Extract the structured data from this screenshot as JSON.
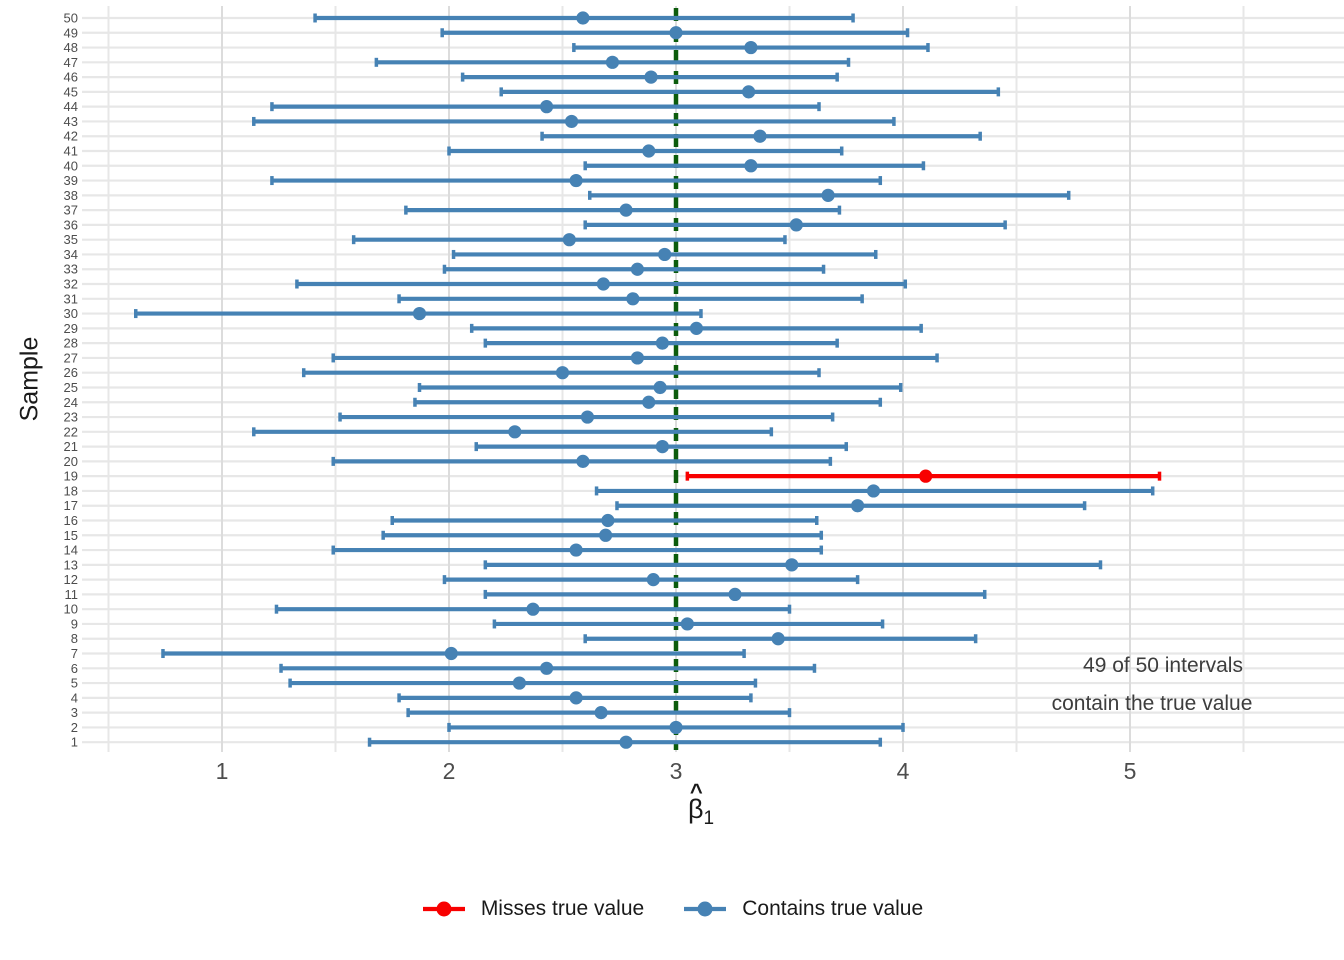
{
  "chart_data": {
    "type": "errorbar",
    "orientation": "horizontal",
    "title": "",
    "y_axis": {
      "title": "Sample",
      "tick_min": 1,
      "tick_max": 50
    },
    "x_axis": {
      "title_symbol": "β",
      "title_hat": "^",
      "title_subscript": "1",
      "ticks": [
        "1",
        "2",
        "3",
        "4",
        "5"
      ],
      "range": [
        0.38,
        5.93
      ]
    },
    "true_value": 3,
    "annotation": {
      "line1": "49 of 50 intervals",
      "line2": "contain the true value"
    },
    "legend": [
      {
        "label": "Misses true value",
        "key": "misses",
        "color": "#f80000"
      },
      {
        "label": "Contains true value",
        "key": "contains",
        "color": "#4682b4"
      }
    ],
    "colors": {
      "contains": "#4682b4",
      "misses": "#f80000",
      "true_line": "#0c5c0c",
      "grid_major": "#dcdcdc",
      "grid_minor": "#e7e7e7",
      "axis_text": "#4d4d4d",
      "annotation_text": "#3d3d3d"
    },
    "grid": true,
    "samples": [
      {
        "id": 1,
        "lower": 1.65,
        "estimate": 2.78,
        "upper": 3.9,
        "contains": true
      },
      {
        "id": 2,
        "lower": 2.0,
        "estimate": 3.0,
        "upper": 4.0,
        "contains": true
      },
      {
        "id": 3,
        "lower": 1.82,
        "estimate": 2.67,
        "upper": 3.5,
        "contains": true
      },
      {
        "id": 4,
        "lower": 1.78,
        "estimate": 2.56,
        "upper": 3.33,
        "contains": true
      },
      {
        "id": 5,
        "lower": 1.3,
        "estimate": 2.31,
        "upper": 3.35,
        "contains": true
      },
      {
        "id": 6,
        "lower": 1.26,
        "estimate": 2.43,
        "upper": 3.61,
        "contains": true
      },
      {
        "id": 7,
        "lower": 0.74,
        "estimate": 2.01,
        "upper": 3.3,
        "contains": true
      },
      {
        "id": 8,
        "lower": 2.6,
        "estimate": 3.45,
        "upper": 4.32,
        "contains": true
      },
      {
        "id": 9,
        "lower": 2.2,
        "estimate": 3.05,
        "upper": 3.91,
        "contains": true
      },
      {
        "id": 10,
        "lower": 1.24,
        "estimate": 2.37,
        "upper": 3.5,
        "contains": true
      },
      {
        "id": 11,
        "lower": 2.16,
        "estimate": 3.26,
        "upper": 4.36,
        "contains": true
      },
      {
        "id": 12,
        "lower": 1.98,
        "estimate": 2.9,
        "upper": 3.8,
        "contains": true
      },
      {
        "id": 13,
        "lower": 2.16,
        "estimate": 3.51,
        "upper": 4.87,
        "contains": true
      },
      {
        "id": 14,
        "lower": 1.49,
        "estimate": 2.56,
        "upper": 3.64,
        "contains": true
      },
      {
        "id": 15,
        "lower": 1.71,
        "estimate": 2.69,
        "upper": 3.64,
        "contains": true
      },
      {
        "id": 16,
        "lower": 1.75,
        "estimate": 2.7,
        "upper": 3.62,
        "contains": true
      },
      {
        "id": 17,
        "lower": 2.74,
        "estimate": 3.8,
        "upper": 4.8,
        "contains": true
      },
      {
        "id": 18,
        "lower": 2.65,
        "estimate": 3.87,
        "upper": 5.1,
        "contains": true
      },
      {
        "id": 19,
        "lower": 3.05,
        "estimate": 4.1,
        "upper": 5.13,
        "contains": false
      },
      {
        "id": 20,
        "lower": 1.49,
        "estimate": 2.59,
        "upper": 3.68,
        "contains": true
      },
      {
        "id": 21,
        "lower": 2.12,
        "estimate": 2.94,
        "upper": 3.75,
        "contains": true
      },
      {
        "id": 22,
        "lower": 1.14,
        "estimate": 2.29,
        "upper": 3.42,
        "contains": true
      },
      {
        "id": 23,
        "lower": 1.52,
        "estimate": 2.61,
        "upper": 3.69,
        "contains": true
      },
      {
        "id": 24,
        "lower": 1.85,
        "estimate": 2.88,
        "upper": 3.9,
        "contains": true
      },
      {
        "id": 25,
        "lower": 1.87,
        "estimate": 2.93,
        "upper": 3.99,
        "contains": true
      },
      {
        "id": 26,
        "lower": 1.36,
        "estimate": 2.5,
        "upper": 3.63,
        "contains": true
      },
      {
        "id": 27,
        "lower": 1.49,
        "estimate": 2.83,
        "upper": 4.15,
        "contains": true
      },
      {
        "id": 28,
        "lower": 2.16,
        "estimate": 2.94,
        "upper": 3.71,
        "contains": true
      },
      {
        "id": 29,
        "lower": 2.1,
        "estimate": 3.09,
        "upper": 4.08,
        "contains": true
      },
      {
        "id": 30,
        "lower": 0.62,
        "estimate": 1.87,
        "upper": 3.11,
        "contains": true
      },
      {
        "id": 31,
        "lower": 1.78,
        "estimate": 2.81,
        "upper": 3.82,
        "contains": true
      },
      {
        "id": 32,
        "lower": 1.33,
        "estimate": 2.68,
        "upper": 4.01,
        "contains": true
      },
      {
        "id": 33,
        "lower": 1.98,
        "estimate": 2.83,
        "upper": 3.65,
        "contains": true
      },
      {
        "id": 34,
        "lower": 2.02,
        "estimate": 2.95,
        "upper": 3.88,
        "contains": true
      },
      {
        "id": 35,
        "lower": 1.58,
        "estimate": 2.53,
        "upper": 3.48,
        "contains": true
      },
      {
        "id": 36,
        "lower": 2.6,
        "estimate": 3.53,
        "upper": 4.45,
        "contains": true
      },
      {
        "id": 37,
        "lower": 1.81,
        "estimate": 2.78,
        "upper": 3.72,
        "contains": true
      },
      {
        "id": 38,
        "lower": 2.62,
        "estimate": 3.67,
        "upper": 4.73,
        "contains": true
      },
      {
        "id": 39,
        "lower": 1.22,
        "estimate": 2.56,
        "upper": 3.9,
        "contains": true
      },
      {
        "id": 40,
        "lower": 2.6,
        "estimate": 3.33,
        "upper": 4.09,
        "contains": true
      },
      {
        "id": 41,
        "lower": 2.0,
        "estimate": 2.88,
        "upper": 3.73,
        "contains": true
      },
      {
        "id": 42,
        "lower": 2.41,
        "estimate": 3.37,
        "upper": 4.34,
        "contains": true
      },
      {
        "id": 43,
        "lower": 1.14,
        "estimate": 2.54,
        "upper": 3.96,
        "contains": true
      },
      {
        "id": 44,
        "lower": 1.22,
        "estimate": 2.43,
        "upper": 3.63,
        "contains": true
      },
      {
        "id": 45,
        "lower": 2.23,
        "estimate": 3.32,
        "upper": 4.42,
        "contains": true
      },
      {
        "id": 46,
        "lower": 2.06,
        "estimate": 2.89,
        "upper": 3.71,
        "contains": true
      },
      {
        "id": 47,
        "lower": 1.68,
        "estimate": 2.72,
        "upper": 3.76,
        "contains": true
      },
      {
        "id": 48,
        "lower": 2.55,
        "estimate": 3.33,
        "upper": 4.11,
        "contains": true
      },
      {
        "id": 49,
        "lower": 1.97,
        "estimate": 3.0,
        "upper": 4.02,
        "contains": true
      },
      {
        "id": 50,
        "lower": 1.41,
        "estimate": 2.59,
        "upper": 3.78,
        "contains": true
      }
    ]
  }
}
